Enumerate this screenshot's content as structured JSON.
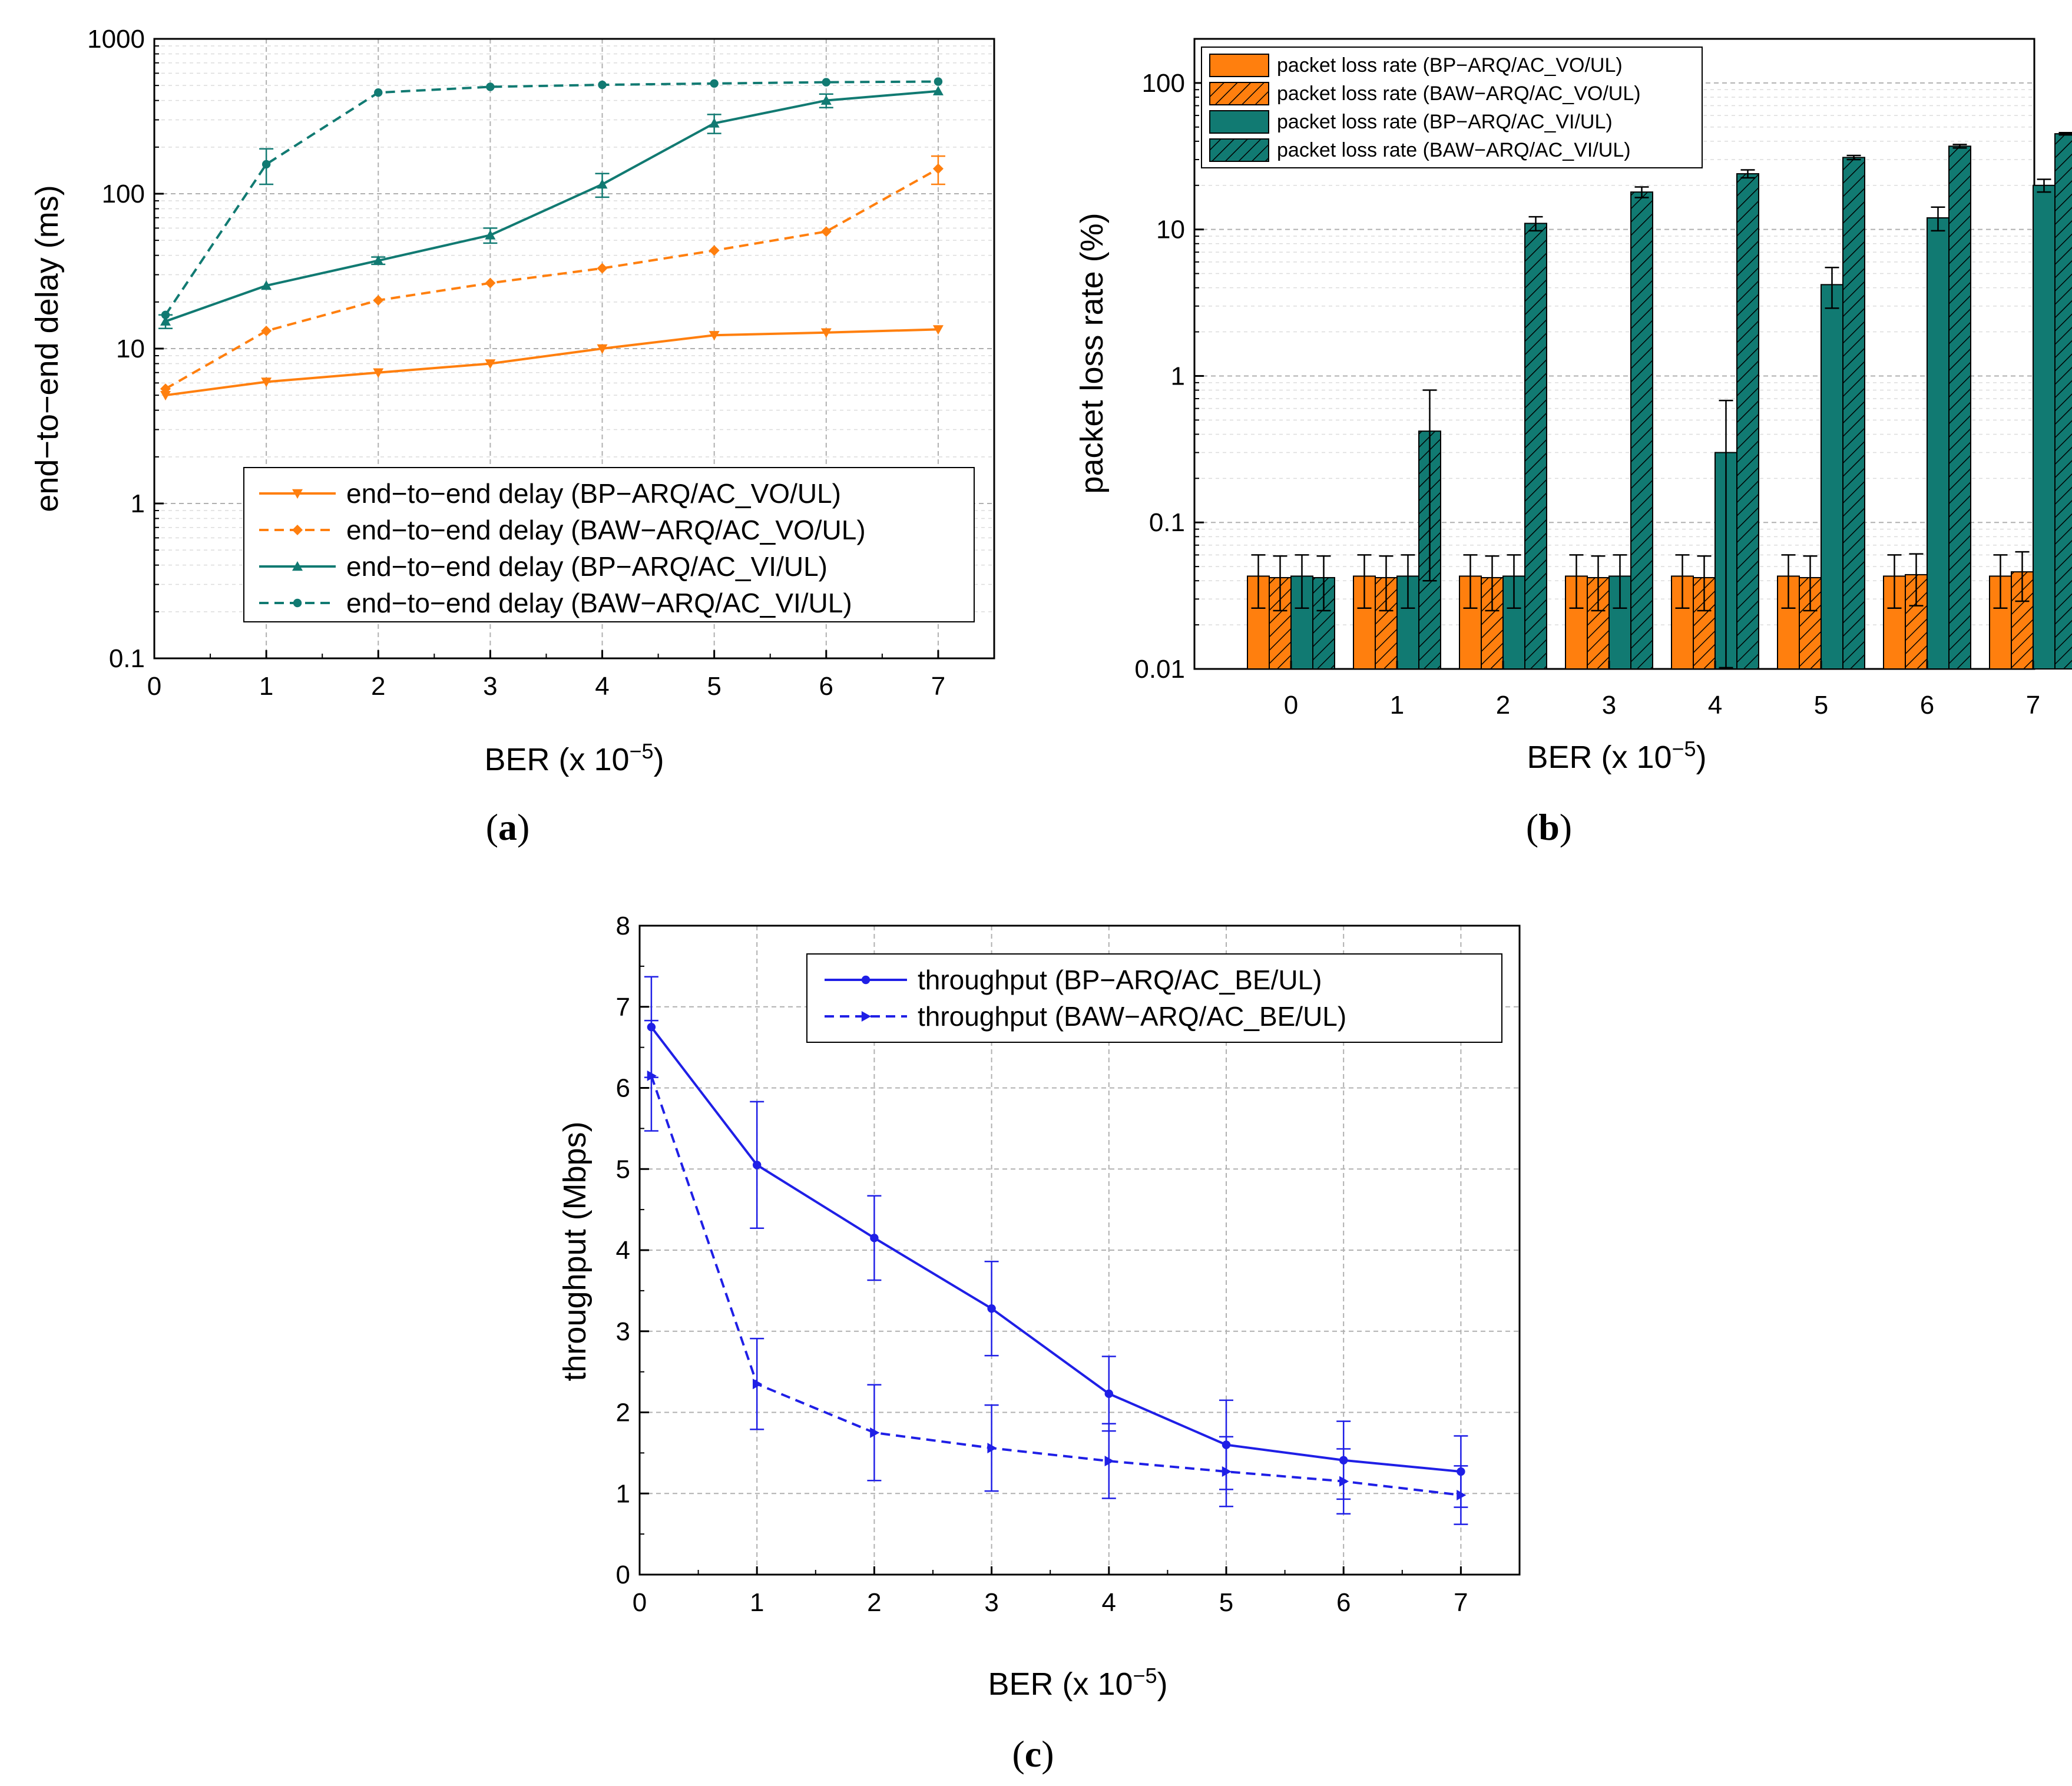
{
  "colors": {
    "orange": "#ff7f0e",
    "teal": "#117a72",
    "blue": "#1f1fe6",
    "grid": "#b0b0b0"
  },
  "chart_data": [
    {
      "id": "a",
      "caption_letter": "a",
      "type": "line",
      "yscale": "log",
      "xlabel": "BER (x 10",
      "xlabel_exp": "−5",
      "xlabel_close": ")",
      "ylabel": "end−to−end delay (ms)",
      "ylim": [
        0.1,
        1000
      ],
      "xlim": [
        0,
        7.5
      ],
      "xticks": [
        "0",
        "1",
        "2",
        "3",
        "4",
        "5",
        "6",
        "7"
      ],
      "yticks": [
        "0.1",
        "1",
        "10",
        "100",
        "1000"
      ],
      "x": [
        0.1,
        1,
        2,
        3,
        4,
        5,
        6,
        7
      ],
      "legend_position": "lower-right",
      "series": [
        {
          "name": "end−to−end delay (BP−ARQ/AC_VO/UL)",
          "color": "orange",
          "dash": false,
          "marker": "triangle-down",
          "values": [
            5.0,
            6.1,
            7.0,
            8.0,
            10.0,
            12.2,
            12.7,
            13.3
          ],
          "err": [
            0,
            0,
            0,
            0,
            0,
            0,
            0,
            0
          ]
        },
        {
          "name": "end−to−end delay (BAW−ARQ/AC_VO/UL)",
          "color": "orange",
          "dash": true,
          "marker": "diamond",
          "values": [
            5.5,
            13.0,
            20.5,
            26.5,
            33.0,
            43.0,
            57.0,
            145.0
          ],
          "err": [
            0,
            0,
            0,
            0,
            0,
            0,
            0,
            30
          ]
        },
        {
          "name": "end−to−end delay (BP−ARQ/AC_VI/UL)",
          "color": "teal",
          "dash": false,
          "marker": "triangle-up",
          "values": [
            15.0,
            25.5,
            37.0,
            54.0,
            115.0,
            285.0,
            400.0,
            460.0
          ],
          "err": [
            1.5,
            0,
            2,
            6,
            20,
            40,
            40,
            0
          ]
        },
        {
          "name": "end−to−end delay (BAW−ARQ/AC_VI/UL)",
          "color": "teal",
          "dash": true,
          "marker": "circle",
          "values": [
            16.5,
            155.0,
            450.0,
            490.0,
            505.0,
            515.0,
            525.0,
            530.0
          ],
          "err": [
            0,
            40,
            0,
            0,
            0,
            0,
            0,
            0
          ]
        }
      ]
    },
    {
      "id": "b",
      "caption_letter": "b",
      "type": "bar",
      "yscale": "log",
      "xlabel": "BER (x 10",
      "xlabel_exp": "−5",
      "xlabel_close": ")",
      "ylabel": "packet loss rate (%)",
      "ylim": [
        0.01,
        200
      ],
      "categories": [
        "0",
        "1",
        "2",
        "3",
        "4",
        "5",
        "6",
        "7"
      ],
      "yticks": [
        "0.01",
        "0.1",
        "1",
        "10",
        "100"
      ],
      "legend_position": "top-left",
      "series": [
        {
          "name": "packet loss rate (BP−ARQ/AC_VO/UL)",
          "color": "orange",
          "hatch": false,
          "values": [
            0.043,
            0.043,
            0.043,
            0.043,
            0.043,
            0.043,
            0.043,
            0.043
          ],
          "err": [
            0.017,
            0.017,
            0.017,
            0.017,
            0.017,
            0.017,
            0.017,
            0.017
          ]
        },
        {
          "name": "packet loss rate (BAW−ARQ/AC_VO/UL)",
          "color": "orange",
          "hatch": true,
          "values": [
            0.042,
            0.042,
            0.042,
            0.042,
            0.042,
            0.042,
            0.044,
            0.046
          ],
          "err": [
            0.017,
            0.017,
            0.017,
            0.017,
            0.017,
            0.017,
            0.017,
            0.017
          ]
        },
        {
          "name": "packet loss rate (BP−ARQ/AC_VI/UL)",
          "color": "teal",
          "hatch": false,
          "values": [
            0.043,
            0.043,
            0.043,
            0.043,
            0.3,
            4.2,
            12.0,
            20.0
          ],
          "err": [
            0.017,
            0.017,
            0.017,
            0.017,
            0.38,
            1.3,
            2.2,
            2.0
          ]
        },
        {
          "name": "packet loss rate (BAW−ARQ/AC_VI/UL)",
          "color": "teal",
          "hatch": true,
          "values": [
            0.042,
            0.42,
            11.0,
            18.0,
            24.0,
            31.0,
            37.0,
            45.0
          ],
          "err": [
            0.017,
            0.38,
            1.2,
            1.5,
            1.5,
            1.0,
            1.0,
            0.8
          ]
        }
      ]
    },
    {
      "id": "c",
      "caption_letter": "c",
      "type": "line",
      "yscale": "linear",
      "xlabel": "BER (x 10",
      "xlabel_exp": "−5",
      "xlabel_close": ")",
      "ylabel": "throughput (Mbps)",
      "ylim": [
        0,
        8
      ],
      "xlim": [
        0,
        7.5
      ],
      "xticks": [
        "0",
        "1",
        "2",
        "3",
        "4",
        "5",
        "6",
        "7"
      ],
      "yticks": [
        "0",
        "1",
        "2",
        "3",
        "4",
        "5",
        "6",
        "7",
        "8"
      ],
      "x": [
        0.1,
        1,
        2,
        3,
        4,
        5,
        6,
        7
      ],
      "legend_position": "top-right",
      "series": [
        {
          "name": "throughput (BP−ARQ/AC_BE/UL)",
          "color": "blue",
          "dash": false,
          "marker": "circle",
          "values": [
            6.75,
            5.05,
            4.15,
            3.28,
            2.23,
            1.6,
            1.41,
            1.27
          ],
          "err": [
            0.62,
            0.78,
            0.52,
            0.58,
            0.46,
            0.55,
            0.48,
            0.44
          ]
        },
        {
          "name": "throughput (BAW−ARQ/AC_BE/UL)",
          "color": "blue",
          "dash": true,
          "marker": "triangle-right",
          "values": [
            6.15,
            2.35,
            1.75,
            1.56,
            1.4,
            1.27,
            1.15,
            0.98
          ],
          "err": [
            0.68,
            0.56,
            0.59,
            0.53,
            0.46,
            0.43,
            0.4,
            0.36
          ]
        }
      ]
    }
  ]
}
